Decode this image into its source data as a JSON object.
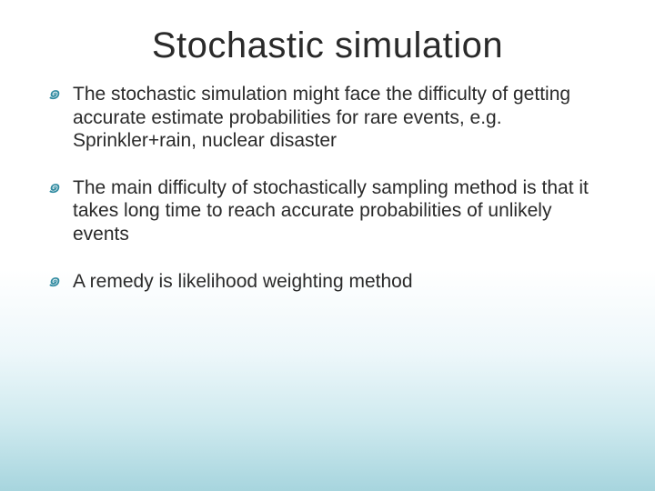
{
  "title": "Stochastic simulation",
  "bullet_glyph": "๑",
  "bullets": [
    "The stochastic simulation might face the difficulty of getting accurate estimate probabilities for rare events, e.g. Sprinkler+rain, nuclear disaster",
    "The main difficulty of stochastically sampling method is that it takes long time to reach accurate probabilities of unlikely events",
    "A remedy is likelihood weighting method"
  ],
  "colors": {
    "text": "#2a2a2a",
    "accent": "#2f8aa0",
    "bg_top": "#ffffff",
    "bg_bottom": "#a7d5de"
  },
  "title_fontsize": 40,
  "body_fontsize": 21
}
